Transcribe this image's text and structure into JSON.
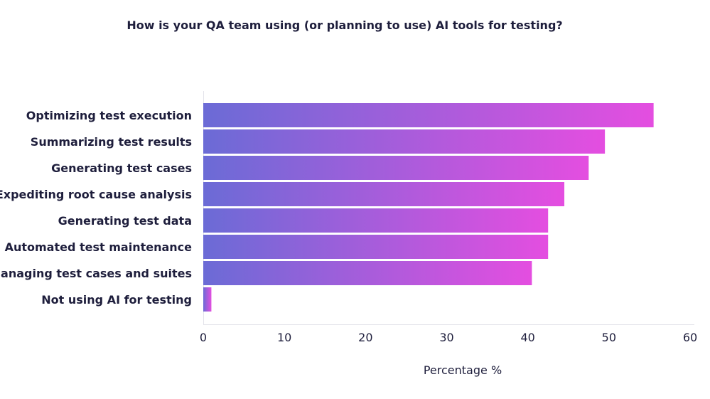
{
  "chart_data": {
    "type": "bar",
    "orientation": "horizontal",
    "title": "How is your QA team using (or planning to use) AI tools for testing?",
    "xlabel": "Percentage %",
    "ylabel": "",
    "xlim": [
      0,
      60
    ],
    "xticks": [
      0,
      10,
      20,
      30,
      40,
      50,
      60
    ],
    "grid": false,
    "categories": [
      "Optimizing test execution",
      "Summarizing test results",
      "Generating test cases",
      "Expediting root cause analysis",
      "Generating test data",
      "Automated test maintenance",
      "Managing test cases and suites",
      "Not using AI for testing"
    ],
    "values": [
      55.5,
      49.5,
      47.5,
      44.5,
      42.5,
      42.5,
      40.5,
      1
    ],
    "colors": {
      "bar_gradient_start": "#6b6bd6",
      "bar_gradient_end": "#e44ee0",
      "text": "#1e1e3c",
      "axis": "#e3e3ea"
    }
  }
}
